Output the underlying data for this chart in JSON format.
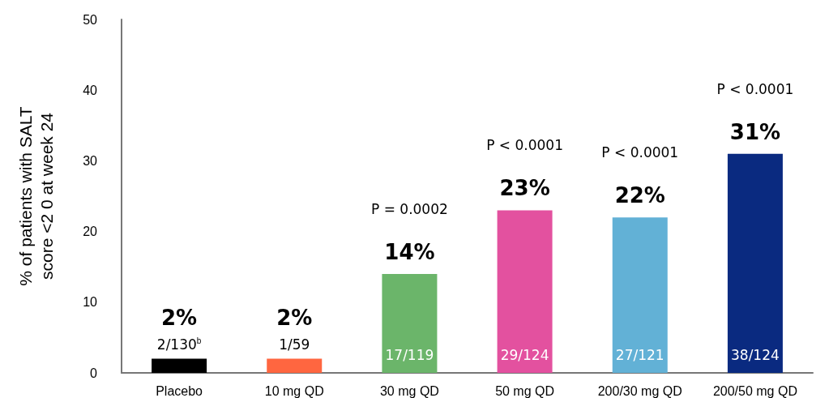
{
  "chart_data": {
    "type": "bar",
    "ylabel": "% of patients with SALT\nscore <2 0 at week 24",
    "categories": [
      "Placebo",
      "10 mg QD",
      "30 mg QD",
      "50 mg QD",
      "200/30 mg QD",
      "200/50 mg QD"
    ],
    "values": [
      2,
      2,
      14,
      23,
      22,
      31
    ],
    "colors": [
      "#000000",
      "#ff6640",
      "#6bb56a",
      "#e3519f",
      "#62b1d6",
      "#0a2a80"
    ],
    "value_labels": [
      "2%",
      "2%",
      "14%",
      "23%",
      "22%",
      "31%"
    ],
    "ylim": [
      0,
      50
    ],
    "yticks": [
      0,
      10,
      20,
      30,
      40,
      50
    ],
    "grid": false,
    "annotations": [
      "2/130$^{b}$",
      "1/59",
      "17/119",
      "29/124",
      "27/121",
      "38/124",
      "P = 0.0002",
      "P < 0.0001",
      "P < 0.0001",
      "P < 0.0001"
    ]
  }
}
